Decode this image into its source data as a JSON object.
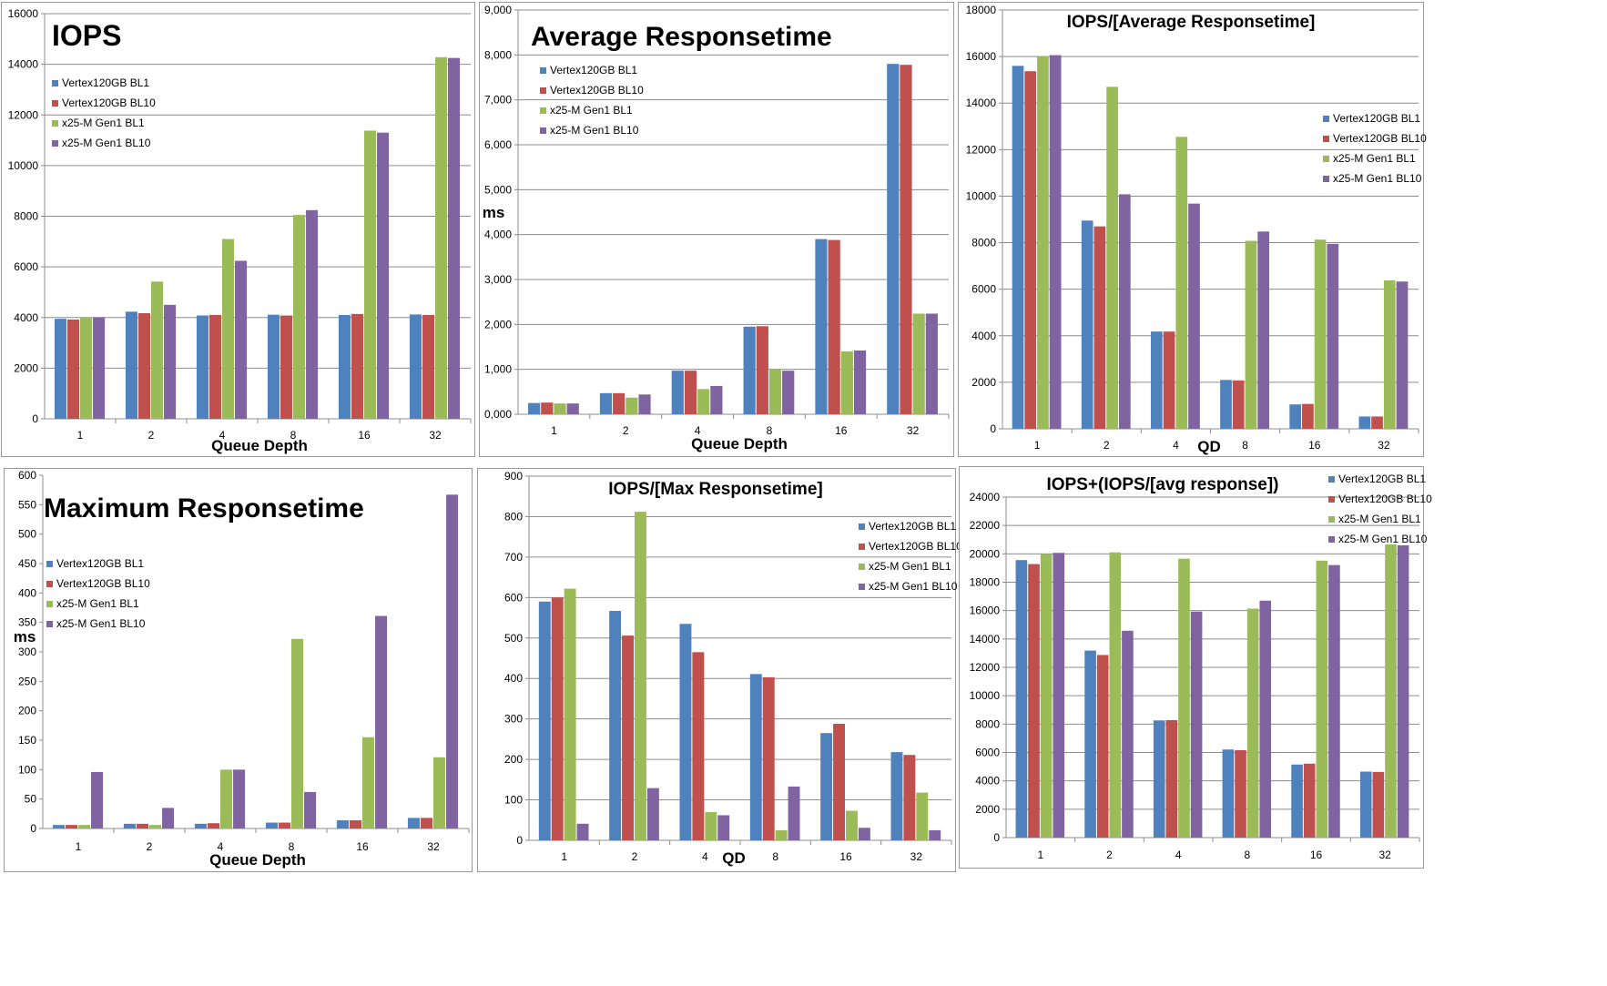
{
  "colors": {
    "series": [
      "#4f81bd",
      "#c0504d",
      "#9bbb59",
      "#8064a2"
    ],
    "grid": "#8c8c8c",
    "border": "#9a9a9a"
  },
  "chart_data": [
    {
      "type": "bar",
      "title": "IOPS",
      "xlabel": "Queue Depth",
      "ylabel": "",
      "categories": [
        "1",
        "2",
        "4",
        "8",
        "16",
        "32"
      ],
      "ylim": [
        0,
        16000
      ],
      "yticks": [
        "0",
        "2000",
        "4000",
        "6000",
        "8000",
        "10000",
        "12000",
        "14000",
        "16000"
      ],
      "legend_position": "top-left",
      "grid": true,
      "series": [
        {
          "name": "Vertex120GB BL1",
          "values": [
            3950,
            4230,
            4080,
            4110,
            4100,
            4120
          ]
        },
        {
          "name": "Vertex120GB BL10",
          "values": [
            3920,
            4170,
            4100,
            4080,
            4140,
            4100
          ]
        },
        {
          "name": "x25-M Gen1 BL1",
          "values": [
            4000,
            5420,
            7100,
            8050,
            11380,
            14280
          ]
        },
        {
          "name": "x25-M Gen1 BL10",
          "values": [
            4010,
            4500,
            6240,
            8240,
            11300,
            14250
          ]
        }
      ]
    },
    {
      "type": "bar",
      "title": "Average Responsetime",
      "xlabel": "Queue Depth",
      "ylabel": "ms",
      "categories": [
        "1",
        "2",
        "4",
        "8",
        "16",
        "32"
      ],
      "ylim": [
        0,
        9
      ],
      "yticks": [
        "0,000",
        "1,000",
        "2,000",
        "3,000",
        "4,000",
        "5,000",
        "6,000",
        "7,000",
        "8,000",
        "9,000"
      ],
      "legend_position": "top-left",
      "grid": true,
      "series": [
        {
          "name": "Vertex120GB BL1",
          "values": [
            0.25,
            0.47,
            0.97,
            1.95,
            3.9,
            7.8
          ]
        },
        {
          "name": "Vertex120GB BL10",
          "values": [
            0.26,
            0.47,
            0.97,
            1.96,
            3.88,
            7.78
          ]
        },
        {
          "name": "x25-M Gen1 BL1",
          "values": [
            0.24,
            0.37,
            0.56,
            1.0,
            1.4,
            2.24
          ]
        },
        {
          "name": "x25-M Gen1 BL10",
          "values": [
            0.24,
            0.44,
            0.63,
            0.97,
            1.42,
            2.24
          ]
        }
      ]
    },
    {
      "type": "bar",
      "title": "IOPS/[Average Responsetime]",
      "xlabel": "QD",
      "ylabel": "",
      "categories": [
        "1",
        "2",
        "4",
        "8",
        "16",
        "32"
      ],
      "ylim": [
        0,
        18000
      ],
      "yticks": [
        "0",
        "2000",
        "4000",
        "6000",
        "8000",
        "10000",
        "12000",
        "14000",
        "16000",
        "18000"
      ],
      "legend_position": "right",
      "grid": true,
      "series": [
        {
          "name": "Vertex120GB BL1",
          "values": [
            15600,
            8950,
            4180,
            2100,
            1050,
            530
          ]
        },
        {
          "name": "Vertex120GB BL10",
          "values": [
            15370,
            8700,
            4180,
            2080,
            1070,
            530
          ]
        },
        {
          "name": "x25-M Gen1 BL1",
          "values": [
            16000,
            14700,
            12550,
            8080,
            8130,
            6380
          ]
        },
        {
          "name": "x25-M Gen1 BL10",
          "values": [
            16060,
            10080,
            9680,
            8480,
            7950,
            6330
          ]
        }
      ]
    },
    {
      "type": "bar",
      "title": "Maximum Responsetime",
      "xlabel": "Queue Depth",
      "ylabel": "ms",
      "categories": [
        "1",
        "2",
        "4",
        "8",
        "16",
        "32"
      ],
      "ylim": [
        0,
        600
      ],
      "yticks": [
        "0",
        "50",
        "100",
        "150",
        "200",
        "250",
        "300",
        "350",
        "400",
        "450",
        "500",
        "550",
        "600"
      ],
      "legend_position": "left",
      "grid": false,
      "series": [
        {
          "name": "Vertex120GB BL1",
          "values": [
            6,
            8,
            8,
            10,
            14,
            18
          ]
        },
        {
          "name": "Vertex120GB BL10",
          "values": [
            6,
            8,
            9,
            10,
            14,
            18
          ]
        },
        {
          "name": "x25-M Gen1 BL1",
          "values": [
            6,
            6,
            100,
            322,
            155,
            121
          ]
        },
        {
          "name": "x25-M Gen1 BL10",
          "values": [
            96,
            35,
            100,
            62,
            361,
            567
          ]
        }
      ]
    },
    {
      "type": "bar",
      "title": "IOPS/[Max Responsetime]",
      "xlabel": "QD",
      "ylabel": "",
      "categories": [
        "1",
        "2",
        "4",
        "8",
        "16",
        "32"
      ],
      "ylim": [
        0,
        900
      ],
      "yticks": [
        "0",
        "100",
        "200",
        "300",
        "400",
        "500",
        "600",
        "700",
        "800",
        "900"
      ],
      "legend_position": "right",
      "grid": true,
      "series": [
        {
          "name": "Vertex120GB BL1",
          "values": [
            590,
            567,
            535,
            411,
            265,
            218
          ]
        },
        {
          "name": "Vertex120GB BL10",
          "values": [
            600,
            506,
            465,
            403,
            288,
            211
          ]
        },
        {
          "name": "x25-M Gen1 BL1",
          "values": [
            622,
            812,
            70,
            25,
            73,
            118
          ]
        },
        {
          "name": "x25-M Gen1 BL10",
          "values": [
            41,
            129,
            62,
            133,
            31,
            25
          ]
        }
      ]
    },
    {
      "type": "bar",
      "title": "IOPS+(IOPS/[avg response])",
      "xlabel": "",
      "ylabel": "",
      "categories": [
        "1",
        "2",
        "4",
        "8",
        "16",
        "32"
      ],
      "ylim": [
        0,
        24000
      ],
      "yticks": [
        "0",
        "2000",
        "4000",
        "6000",
        "8000",
        "10000",
        "12000",
        "14000",
        "16000",
        "18000",
        "20000",
        "22000",
        "24000"
      ],
      "legend_position": "top-right",
      "grid": true,
      "series": [
        {
          "name": "Vertex120GB BL1",
          "values": [
            19560,
            13180,
            8260,
            6210,
            5150,
            4650
          ]
        },
        {
          "name": "Vertex120GB BL10",
          "values": [
            19280,
            12870,
            8280,
            6160,
            5210,
            4630
          ]
        },
        {
          "name": "x25-M Gen1 BL1",
          "values": [
            19990,
            20100,
            19660,
            16140,
            19520,
            20660
          ]
        },
        {
          "name": "x25-M Gen1 BL10",
          "values": [
            20070,
            14580,
            15930,
            16700,
            19210,
            20600
          ]
        }
      ]
    }
  ]
}
